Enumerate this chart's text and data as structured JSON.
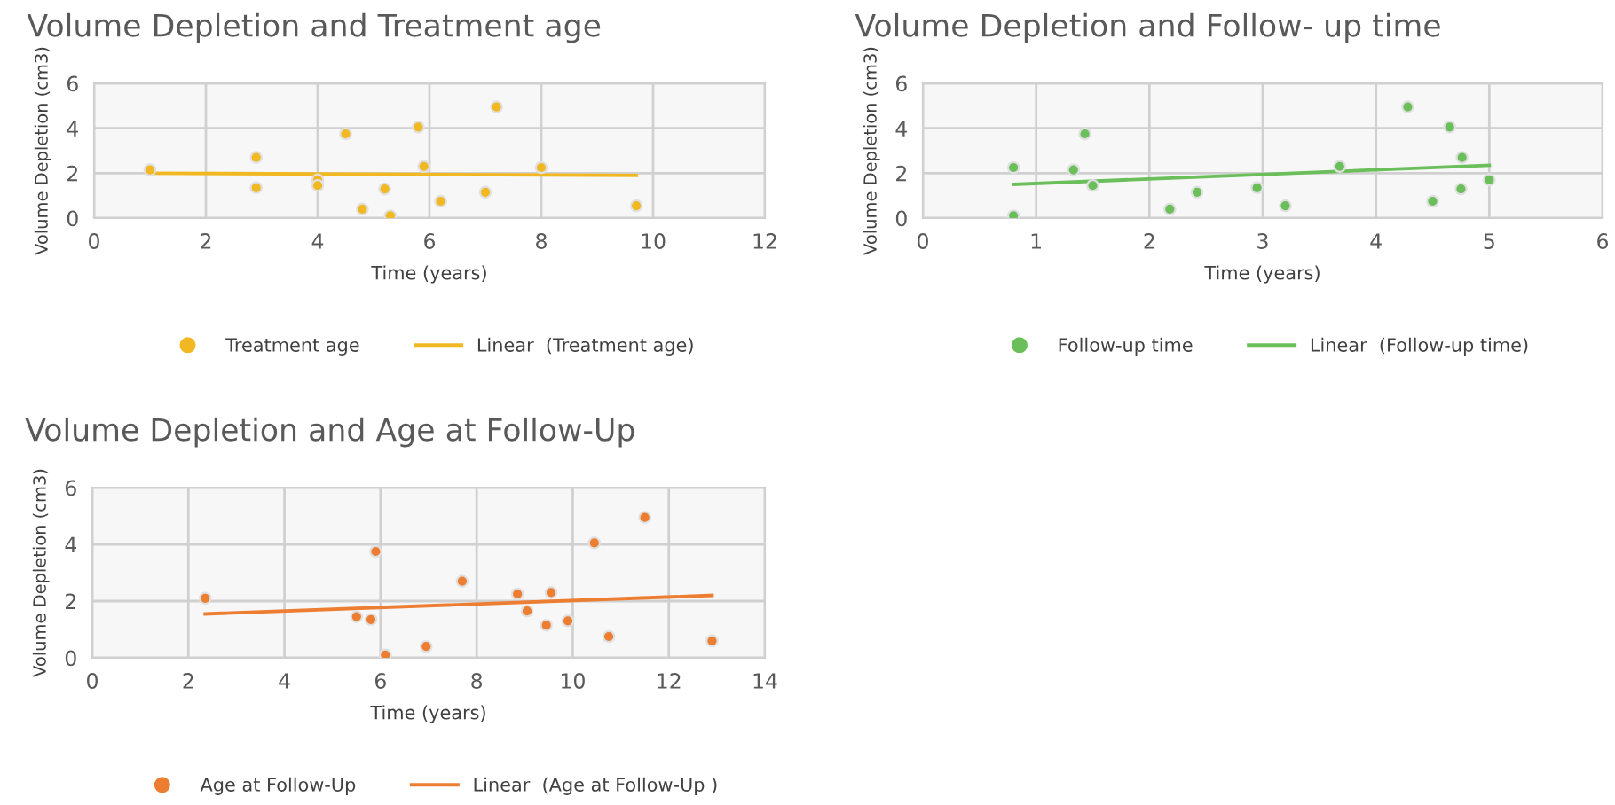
{
  "chart_data": [
    {
      "type": "scatter",
      "title": "Volume Depletion and Treatment age",
      "xlabel": "Time (years)",
      "ylabel": "Volume Depletion (cm3)",
      "xlim": [
        0,
        12
      ],
      "xticks": [
        0,
        2,
        4,
        6,
        8,
        10,
        12
      ],
      "ylim": [
        0,
        6
      ],
      "yticks": [
        0,
        2,
        4,
        6
      ],
      "grid": true,
      "legend": "bottom",
      "series": [
        {
          "name": "Treatment age",
          "marker": "circle",
          "color": "#f2b822",
          "x": [
            1,
            2.9,
            2.9,
            4,
            4,
            4.5,
            4.8,
            5.2,
            5.3,
            5.8,
            5.9,
            6.2,
            7,
            7.2,
            8,
            9.7
          ],
          "values": [
            2.15,
            2.7,
            1.35,
            1.7,
            1.45,
            3.75,
            0.4,
            1.3,
            0.1,
            4.05,
            2.3,
            0.75,
            1.15,
            4.95,
            2.25,
            0.55
          ]
        },
        {
          "name": "Linear  (Treatment age)",
          "type": "line",
          "color": "#f2b822",
          "x": [
            1,
            9.7
          ],
          "values": [
            2.0,
            1.9
          ]
        }
      ]
    },
    {
      "type": "scatter",
      "title": "Volume Depletion and Follow- up time",
      "xlabel": "Time (years)",
      "ylabel": "Volume Depletion (cm3)",
      "xlim": [
        0,
        6
      ],
      "xticks": [
        0,
        1,
        2,
        3,
        4,
        5,
        6
      ],
      "ylim": [
        0,
        6
      ],
      "yticks": [
        0,
        2,
        4,
        6
      ],
      "grid": true,
      "legend": "bottom",
      "series": [
        {
          "name": "Follow-up time",
          "marker": "circle",
          "color": "#6abf5a",
          "x": [
            0.8,
            0.8,
            1.33,
            1.43,
            1.5,
            2.18,
            2.42,
            2.95,
            3.2,
            3.68,
            4.28,
            4.5,
            4.65,
            4.75,
            4.76,
            5.0
          ],
          "values": [
            2.25,
            0.1,
            2.15,
            3.75,
            1.45,
            0.4,
            1.15,
            1.35,
            0.55,
            2.3,
            4.95,
            0.75,
            4.05,
            1.3,
            2.7,
            1.7
          ]
        },
        {
          "name": "Linear  (Follow-up time)",
          "type": "line",
          "color": "#6abf5a",
          "x": [
            0.8,
            5.0
          ],
          "values": [
            1.5,
            2.35
          ]
        }
      ]
    },
    {
      "type": "scatter",
      "title": "Volume Depletion and Age at Follow-Up",
      "xlabel": "Time (years)",
      "ylabel": "Volume Depletion (cm3)",
      "xlim": [
        0,
        14
      ],
      "xticks": [
        0,
        2,
        4,
        6,
        8,
        10,
        12,
        14
      ],
      "ylim": [
        0,
        6
      ],
      "yticks": [
        0,
        2,
        4,
        6
      ],
      "grid": true,
      "legend": "bottom",
      "series": [
        {
          "name": "Age at Follow-Up",
          "marker": "circle",
          "color": "#ed7d31",
          "x": [
            2.35,
            5.5,
            5.8,
            5.9,
            6.1,
            6.95,
            7.7,
            8.85,
            9.05,
            9.45,
            9.55,
            9.9,
            10.45,
            10.75,
            11.5,
            12.9
          ],
          "values": [
            2.1,
            1.45,
            1.35,
            3.75,
            0.1,
            0.4,
            2.7,
            2.25,
            1.65,
            1.15,
            2.3,
            1.3,
            4.05,
            0.75,
            4.95,
            0.6
          ]
        },
        {
          "name": "Linear  (Age at Follow-Up )",
          "type": "line",
          "color": "#ed7d31",
          "x": [
            2.35,
            12.9
          ],
          "values": [
            1.55,
            2.2
          ]
        }
      ]
    }
  ]
}
